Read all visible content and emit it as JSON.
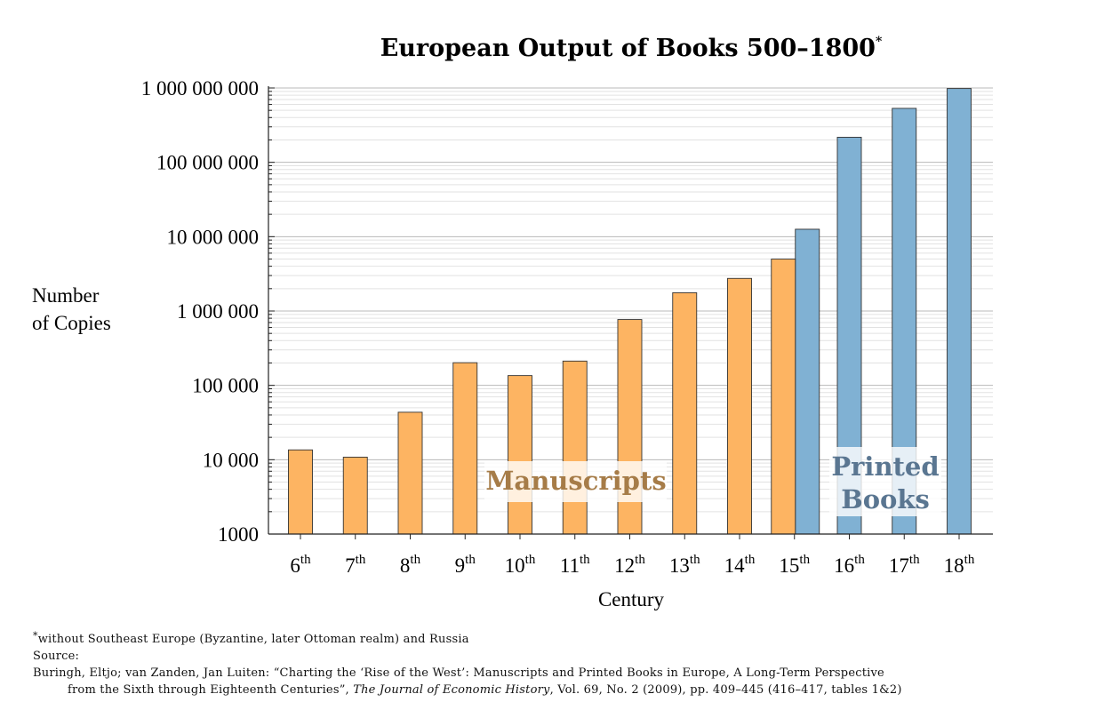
{
  "chart_data": {
    "type": "bar",
    "title": "European Output of Books 500–1800",
    "title_marker": "*",
    "xlabel": "Century",
    "ylabel": [
      "Number",
      "of Copies"
    ],
    "yscale": "log",
    "ylim": [
      1000,
      1000000000
    ],
    "yticks": [
      {
        "value": 1000,
        "label": "1000"
      },
      {
        "value": 10000,
        "label": "10 000"
      },
      {
        "value": 100000,
        "label": "100 000"
      },
      {
        "value": 1000000,
        "label": "1 000 000"
      },
      {
        "value": 10000000,
        "label": "10 000 000"
      },
      {
        "value": 100000000,
        "label": "100 000 000"
      },
      {
        "value": 1000000000,
        "label": "1 000 000 000"
      }
    ],
    "grid": "major and minor horizontal",
    "categories": [
      {
        "num": "6",
        "suffix": "th"
      },
      {
        "num": "7",
        "suffix": "th"
      },
      {
        "num": "8",
        "suffix": "th"
      },
      {
        "num": "9",
        "suffix": "th"
      },
      {
        "num": "10",
        "suffix": "th"
      },
      {
        "num": "11",
        "suffix": "th"
      },
      {
        "num": "12",
        "suffix": "th"
      },
      {
        "num": "13",
        "suffix": "th"
      },
      {
        "num": "14",
        "suffix": "th"
      },
      {
        "num": "15",
        "suffix": "th"
      },
      {
        "num": "16",
        "suffix": "th"
      },
      {
        "num": "17",
        "suffix": "th"
      },
      {
        "num": "18",
        "suffix": "th"
      }
    ],
    "series": [
      {
        "name": "Manuscripts",
        "color": "#fdb462",
        "values": [
          13552,
          10825,
          43500,
          201750,
          135500,
          212150,
          768450,
          1761350,
          2746800,
          4999250,
          null,
          null,
          null
        ]
      },
      {
        "name": "Printed Books",
        "color": "#80b1d3",
        "values": [
          null,
          null,
          null,
          null,
          null,
          null,
          null,
          null,
          null,
          12589000,
          217444000,
          531941000,
          983166000
        ]
      }
    ],
    "annotations": [
      {
        "text": "Manuscripts",
        "color": "#a67c48"
      },
      {
        "text": [
          "Printed",
          "Books"
        ],
        "color": "#5a7691"
      }
    ]
  },
  "footer": {
    "footnote_marker": "*",
    "footnote": "without Southeast Europe (Byzantine, later Ottoman realm) and Russia",
    "source_label": "Source:",
    "source_line1": "Buringh, Eltjo; van Zanden, Jan Luiten: “Charting the ‘Rise of the West’: Manuscripts and Printed Books in Europe, A Long-Term Perspective",
    "source_line2_pre": "from the Sixth through Eighteenth Centuries”,",
    "source_journal": "The Journal of Economic History",
    "source_line2_post": ", Vol. 69, No. 2 (2009), pp. 409–445 (416–417, tables 1&2)"
  }
}
